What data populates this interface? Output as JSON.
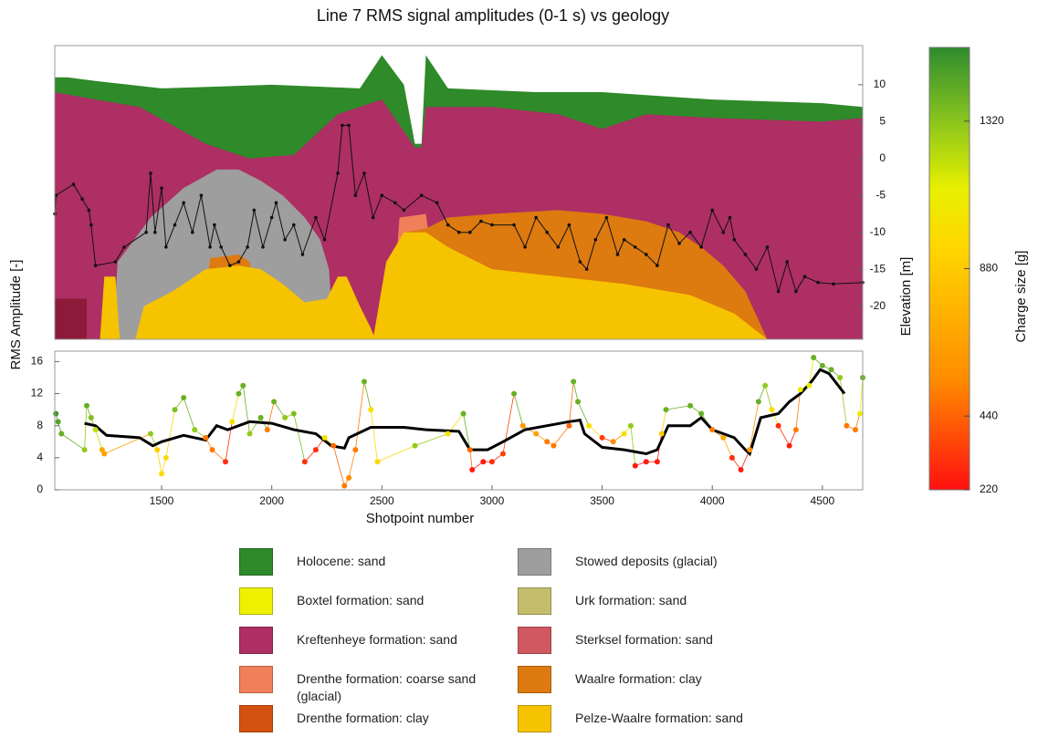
{
  "chart_data": [
    {
      "type": "area",
      "title": "Line 7 RMS signal amplitudes (0-1 s) vs geology",
      "ylabel": "Elevation [m]",
      "xlim": [
        1015,
        4683
      ],
      "ylim": [
        -24.5,
        15.3
      ],
      "yticks": [
        10,
        5,
        0,
        -5,
        -10,
        -15,
        -20
      ],
      "layers": [
        {
          "color": "#2f8a2a",
          "x": [
            1015,
            1070,
            1200,
            1500,
            2000,
            2400,
            2500,
            2600,
            2650,
            2680,
            2700,
            2800,
            3200,
            3500,
            4000,
            4500,
            4683
          ],
          "top": [
            11,
            11,
            10.5,
            9.5,
            10,
            9.5,
            14,
            10,
            2,
            2,
            14,
            9.5,
            9,
            9,
            8,
            7.5,
            7
          ]
        },
        {
          "color": "#ad2f63",
          "x": [
            1015,
            1200,
            1400,
            1700,
            1900,
            2100,
            2300,
            2500,
            2650,
            2680,
            2700,
            3000,
            3300,
            3500,
            3700,
            4000,
            4500,
            4683
          ],
          "top": [
            9,
            8,
            7,
            2,
            0,
            0.5,
            6,
            8,
            1.5,
            1.5,
            7,
            7,
            6,
            4,
            6,
            5.5,
            5,
            5.5
          ]
        },
        {
          "color": "#8e1a3a",
          "x": [
            1015,
            1160
          ],
          "top": [
            -19,
            -19
          ]
        },
        {
          "color": "#9e9e9e",
          "x": [
            1280,
            1300,
            1450,
            1600,
            1750,
            1850,
            1950,
            2050,
            2150,
            2220,
            2260,
            2280
          ],
          "top": [
            -24.5,
            -14,
            -8,
            -4,
            -1.5,
            -1.5,
            -3,
            -5,
            -8,
            -11,
            -15,
            -24.5
          ]
        },
        {
          "color": "#dd7a10",
          "x": [
            1680,
            1720,
            1850,
            1900,
            1950
          ],
          "top": [
            -24.5,
            -13.5,
            -13,
            -14,
            -24.5
          ]
        },
        {
          "color": "#f0805a",
          "x": [
            2540,
            2580,
            2700,
            2780
          ],
          "top": [
            -24.5,
            -8,
            -7.5,
            -24.5
          ]
        },
        {
          "color": "#dd7a10",
          "x": [
            2560,
            2600,
            2700,
            2800,
            3000,
            3300,
            3500,
            3700,
            3850,
            3950,
            4050,
            4150,
            4250
          ],
          "top": [
            -24.5,
            -10,
            -9.5,
            -8,
            -7.5,
            -7,
            -7.5,
            -8.5,
            -10,
            -12,
            -14.5,
            -18,
            -24.5
          ]
        },
        {
          "color": "#f6c300",
          "x": [
            1220,
            1240,
            1290,
            1310,
            1380,
            1420,
            1550,
            1700,
            1850,
            1950,
            2050,
            2150,
            2250,
            2300,
            2340,
            2400,
            2450,
            2470
          ],
          "top": [
            -24.5,
            -16,
            -16,
            -24.5,
            -24.5,
            -20,
            -18,
            -15,
            -14.5,
            -15,
            -17,
            -19.5,
            -19,
            -16,
            -16,
            -20,
            -23,
            -24.5
          ]
        },
        {
          "color": "#f6c300",
          "x": [
            2460,
            2520,
            2600,
            2700,
            2800,
            3000,
            3300,
            3600,
            3900,
            4100,
            4250
          ],
          "top": [
            -24.5,
            -14,
            -10,
            -10,
            -12,
            -15,
            -16,
            -17,
            -18.5,
            -21,
            -24.5
          ]
        }
      ],
      "trace": {
        "color": "#111111",
        "x": [
          1015,
          1020,
          1100,
          1140,
          1170,
          1180,
          1200,
          1290,
          1330,
          1430,
          1450,
          1470,
          1500,
          1520,
          1560,
          1600,
          1640,
          1680,
          1720,
          1740,
          1770,
          1810,
          1850,
          1890,
          1920,
          1960,
          2000,
          2020,
          2060,
          2100,
          2140,
          2200,
          2240,
          2300,
          2320,
          2350,
          2380,
          2420,
          2460,
          2500,
          2560,
          2600,
          2680,
          2750,
          2800,
          2850,
          2900,
          2950,
          3000,
          3100,
          3150,
          3200,
          3250,
          3300,
          3350,
          3400,
          3430,
          3470,
          3520,
          3570,
          3600,
          3650,
          3700,
          3750,
          3800,
          3850,
          3900,
          3950,
          4000,
          4050,
          4080,
          4100,
          4150,
          4200,
          4250,
          4300,
          4340,
          4380,
          4420,
          4480,
          4550,
          4683
        ],
        "y": [
          -7.5,
          -5,
          -3.5,
          -5.5,
          -7,
          -9,
          -14.5,
          -14,
          -12,
          -10,
          -2,
          -10,
          -4,
          -12,
          -9,
          -6,
          -10,
          -5,
          -12,
          -9,
          -12,
          -14.5,
          -14,
          -12,
          -7,
          -12,
          -8,
          -6,
          -11,
          -9,
          -13,
          -8,
          -11,
          -2,
          4.5,
          4.5,
          -5,
          -2,
          -8,
          -5,
          -6,
          -7,
          -5,
          -6,
          -9,
          -10,
          -10,
          -8.5,
          -9,
          -9,
          -12,
          -8,
          -10,
          -12,
          -9,
          -14,
          -15,
          -11,
          -8,
          -13,
          -11,
          -12,
          -13,
          -14.5,
          -9,
          -11.5,
          -10,
          -12,
          -7,
          -10,
          -8,
          -11,
          -13,
          -15,
          -12,
          -18,
          -14,
          -18,
          -16,
          -16.8,
          -17,
          -16.8
        ]
      },
      "legend": [
        {
          "label": "Holocene: sand",
          "color": "#2f8a2a"
        },
        {
          "label": "Boxtel formation: sand",
          "color": "#eef000"
        },
        {
          "label": "Kreftenheye formation: sand",
          "color": "#ad2f63"
        },
        {
          "label": "Drenthe formation: coarse sand (glacial)",
          "color": "#f0805a"
        },
        {
          "label": "Drenthe formation: clay",
          "color": "#d4520f"
        },
        {
          "label": "Stowed deposits (glacial)",
          "color": "#9e9e9e"
        },
        {
          "label": "Urk formation: sand",
          "color": "#c4bd6c"
        },
        {
          "label": "Sterksel formation: sand",
          "color": "#d05860"
        },
        {
          "label": "Waalre formation: clay",
          "color": "#dd7a10"
        },
        {
          "label": "Pelze-Waalre formation: sand",
          "color": "#f6c300"
        }
      ]
    },
    {
      "type": "scatter",
      "ylabel": "RMS Amplitude [-]",
      "xlabel": "Shotpoint number",
      "xlim": [
        1015,
        4683
      ],
      "xticks": [
        1500,
        2000,
        2500,
        3000,
        3500,
        4000,
        4500
      ],
      "ylim": [
        0,
        17.3
      ],
      "yticks": [
        0,
        4,
        8,
        12,
        16
      ],
      "points": {
        "x": [
          1020,
          1030,
          1045,
          1150,
          1160,
          1180,
          1200,
          1230,
          1240,
          1450,
          1480,
          1500,
          1520,
          1560,
          1600,
          1650,
          1700,
          1730,
          1790,
          1820,
          1850,
          1870,
          1900,
          1950,
          1980,
          2010,
          2060,
          2100,
          2150,
          2200,
          2240,
          2280,
          2330,
          2350,
          2380,
          2420,
          2450,
          2480,
          2650,
          2800,
          2870,
          2900,
          2910,
          2960,
          3000,
          3050,
          3100,
          3140,
          3200,
          3250,
          3280,
          3350,
          3370,
          3390,
          3440,
          3500,
          3550,
          3600,
          3630,
          3650,
          3700,
          3750,
          3770,
          3790,
          3900,
          3950,
          4000,
          4050,
          4090,
          4130,
          4170,
          4210,
          4240,
          4270,
          4300,
          4350,
          4380,
          4400,
          4440,
          4460,
          4500,
          4540,
          4580,
          4610,
          4650,
          4670,
          4683
        ],
        "y": [
          9.5,
          8.5,
          7,
          5,
          10.5,
          9,
          7.5,
          5,
          4.5,
          7,
          5,
          2,
          4,
          10,
          11.5,
          7.5,
          6.5,
          5,
          3.5,
          8.5,
          12,
          13,
          7,
          9,
          7.5,
          11,
          9,
          9.5,
          3.5,
          5,
          6.5,
          5.5,
          0.5,
          1.5,
          5,
          13.5,
          10,
          3.5,
          5.5,
          7,
          9.5,
          5,
          2.5,
          3.5,
          3.5,
          4.5,
          12,
          8,
          7,
          6,
          5.5,
          8,
          13.5,
          11,
          8,
          6.5,
          6,
          7,
          8,
          3,
          3.5,
          3.5,
          7,
          10,
          10.5,
          9.5,
          7.5,
          6.5,
          4,
          2.5,
          5,
          11,
          13,
          10,
          8,
          5.5,
          7.5,
          12.5,
          13,
          16.5,
          15.5,
          15,
          14,
          8,
          7.5,
          9.5,
          14
        ],
        "charge": [
          1500,
          1450,
          1400,
          1300,
          1400,
          1350,
          1200,
          700,
          650,
          1300,
          900,
          950,
          950,
          1350,
          1400,
          1300,
          500,
          500,
          300,
          1000,
          1400,
          1400,
          1300,
          1400,
          500,
          1400,
          1300,
          1350,
          300,
          300,
          1000,
          450,
          500,
          550,
          500,
          1400,
          1000,
          950,
          1300,
          1000,
          1400,
          450,
          250,
          250,
          300,
          350,
          1400,
          600,
          650,
          500,
          500,
          450,
          1400,
          1400,
          1000,
          350,
          550,
          1000,
          1300,
          250,
          250,
          250,
          900,
          1400,
          1400,
          1400,
          500,
          700,
          300,
          250,
          600,
          1400,
          1300,
          1000,
          300,
          250,
          500,
          1100,
          1100,
          1400,
          1400,
          1400,
          1300,
          500,
          500,
          1100,
          1400
        ]
      },
      "smooth": {
        "color": "#000000",
        "x": [
          1150,
          1200,
          1250,
          1400,
          1460,
          1500,
          1600,
          1700,
          1750,
          1800,
          1900,
          2000,
          2100,
          2200,
          2270,
          2330,
          2350,
          2450,
          2600,
          2700,
          2850,
          2900,
          2980,
          3050,
          3150,
          3250,
          3350,
          3400,
          3420,
          3500,
          3600,
          3700,
          3750,
          3800,
          3900,
          3950,
          4000,
          4100,
          4150,
          4170,
          4220,
          4300,
          4350,
          4400,
          4450,
          4490,
          4530,
          4600
        ],
        "y": [
          8.3,
          8,
          6.8,
          6.5,
          5.5,
          6,
          6.8,
          6.2,
          8,
          7.5,
          8.5,
          8.3,
          7.5,
          7,
          5.5,
          5.2,
          6.5,
          7.8,
          7.8,
          7.5,
          7.3,
          5,
          5,
          6,
          7.5,
          8,
          8.5,
          8.7,
          7,
          5.3,
          5,
          4.5,
          5,
          8,
          8,
          9,
          7.5,
          6.5,
          5,
          4.5,
          9,
          9.5,
          11,
          12,
          13.5,
          15,
          14.5,
          12
        ]
      },
      "colorbar": {
        "label": "Charge size [g]",
        "clim": [
          220,
          1540
        ],
        "cticks": [
          220,
          440,
          880,
          1320
        ]
      }
    }
  ]
}
